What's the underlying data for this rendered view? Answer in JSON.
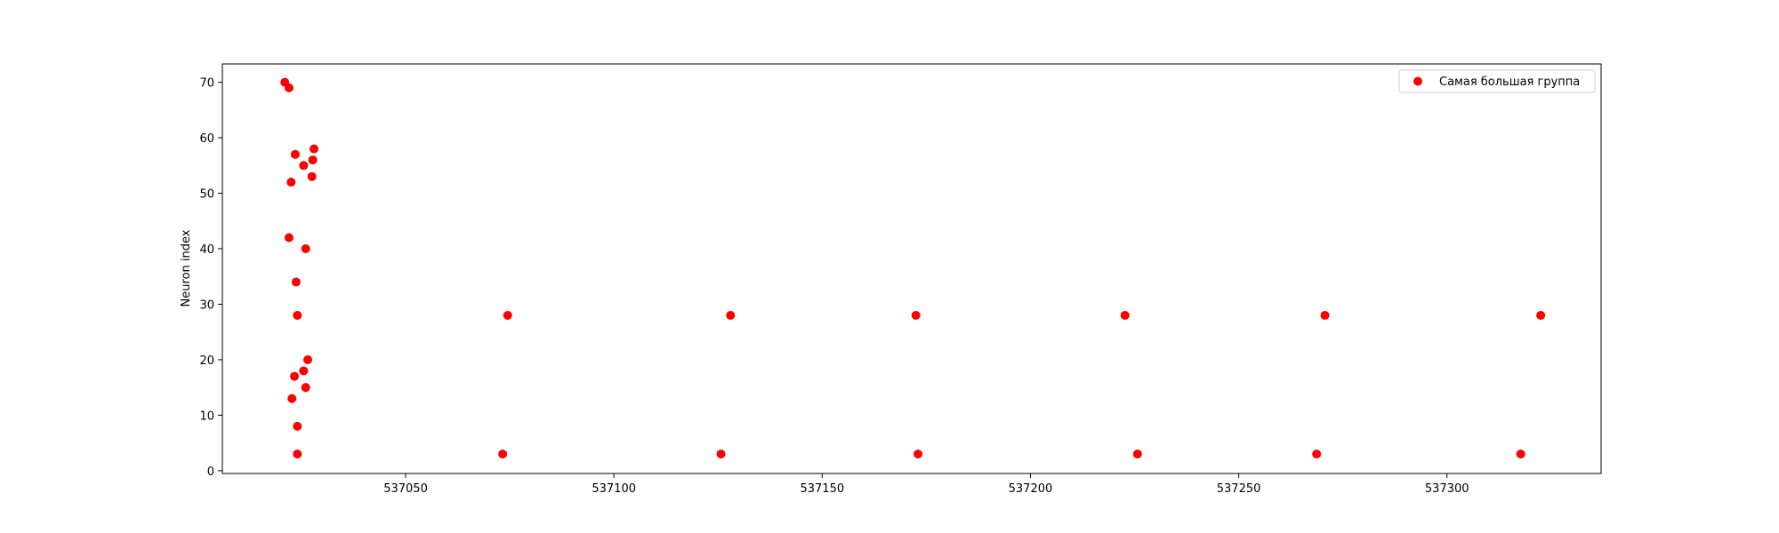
{
  "chart_data": {
    "type": "scatter",
    "title": "",
    "xlabel": "",
    "ylabel": "Neuron index",
    "xlim": [
      537006,
      537337
    ],
    "ylim": [
      -0.5,
      73.3
    ],
    "xticks": [
      537050,
      537100,
      537150,
      537200,
      537250,
      537300
    ],
    "yticks": [
      0,
      10,
      20,
      30,
      40,
      50,
      60,
      70
    ],
    "grid": false,
    "legend": {
      "position": "top-right",
      "entries": [
        "Самая большая группа"
      ]
    },
    "series": [
      {
        "name": "Самая большая группа",
        "color": "#ff0000",
        "marker": "circle",
        "points": [
          [
            537021,
            70
          ],
          [
            537022,
            69
          ],
          [
            537023.5,
            57
          ],
          [
            537022.5,
            52
          ],
          [
            537022,
            42
          ],
          [
            537025.5,
            55
          ],
          [
            537028,
            58
          ],
          [
            537027.7,
            56
          ],
          [
            537027.5,
            53
          ],
          [
            537026,
            40
          ],
          [
            537023.7,
            34
          ],
          [
            537024,
            28
          ],
          [
            537026.5,
            20
          ],
          [
            537025.5,
            18
          ],
          [
            537023.3,
            17
          ],
          [
            537026,
            15
          ],
          [
            537022.7,
            13
          ],
          [
            537024,
            8
          ],
          [
            537024,
            3
          ],
          [
            537074.5,
            28
          ],
          [
            537128,
            28
          ],
          [
            537172.5,
            28
          ],
          [
            537222.7,
            28
          ],
          [
            537270.7,
            28
          ],
          [
            537322.5,
            28
          ],
          [
            537073.3,
            3
          ],
          [
            537125.7,
            3
          ],
          [
            537173,
            3
          ],
          [
            537225.7,
            3
          ],
          [
            537268.7,
            3
          ],
          [
            537317.7,
            3
          ]
        ]
      }
    ]
  }
}
